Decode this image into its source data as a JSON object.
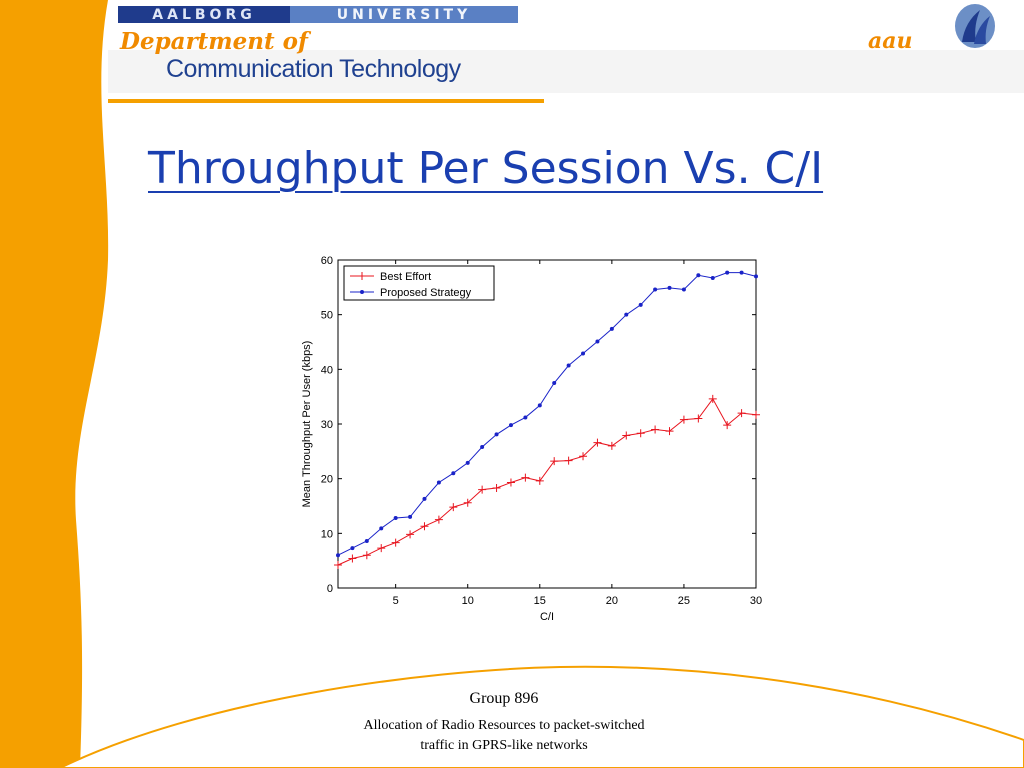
{
  "header": {
    "university_left": "AALBORG",
    "university_right": "UNIVERSITY",
    "department_line1": "Department of",
    "department_line2": "Communication Technology",
    "logo_text": "aau"
  },
  "slide": {
    "title": "Throughput Per Session Vs. C/I"
  },
  "footer": {
    "group": "Group 896",
    "line1": "Allocation of Radio Resources to packet-switched",
    "line2": "traffic in GPRS-like networks"
  },
  "colors": {
    "accent_orange": "#f5a000",
    "title_blue": "#1a3fb0",
    "series_red": "#e8141e",
    "series_blue": "#1a23c8"
  },
  "chart_data": {
    "type": "line",
    "title": "",
    "xlabel": "C/I",
    "ylabel": "Mean Throughput Per User (kbps)",
    "xlim": [
      1,
      30
    ],
    "ylim": [
      0,
      60
    ],
    "xticks": [
      5,
      10,
      15,
      20,
      25,
      30
    ],
    "yticks": [
      0,
      10,
      20,
      30,
      40,
      50,
      60
    ],
    "grid": false,
    "legend": "top-left",
    "x": [
      1,
      2,
      3,
      4,
      5,
      6,
      7,
      8,
      9,
      10,
      11,
      12,
      13,
      14,
      15,
      16,
      17,
      18,
      19,
      20,
      21,
      22,
      23,
      24,
      25,
      26,
      27,
      28,
      29,
      30
    ],
    "series": [
      {
        "name": "Best Effort",
        "color": "#e8141e",
        "marker": "plus",
        "values": [
          4.2,
          5.4,
          6.0,
          7.3,
          8.3,
          9.8,
          11.3,
          12.5,
          14.8,
          15.6,
          18.0,
          18.3,
          19.3,
          20.2,
          19.6,
          23.2,
          23.3,
          24.1,
          26.6,
          26.0,
          27.9,
          28.3,
          29.0,
          28.7,
          30.8,
          31.0,
          34.6,
          29.8,
          32.0,
          31.7
        ]
      },
      {
        "name": "Proposed Strategy",
        "color": "#1a23c8",
        "marker": "dot",
        "values": [
          6.0,
          7.3,
          8.6,
          10.9,
          12.8,
          13.0,
          16.3,
          19.3,
          21.0,
          22.9,
          25.8,
          28.1,
          29.8,
          31.2,
          33.4,
          37.5,
          40.7,
          42.9,
          45.1,
          47.4,
          50.0,
          51.8,
          54.6,
          54.9,
          54.6,
          57.2,
          56.7,
          57.7,
          57.7,
          57.0
        ]
      }
    ]
  }
}
